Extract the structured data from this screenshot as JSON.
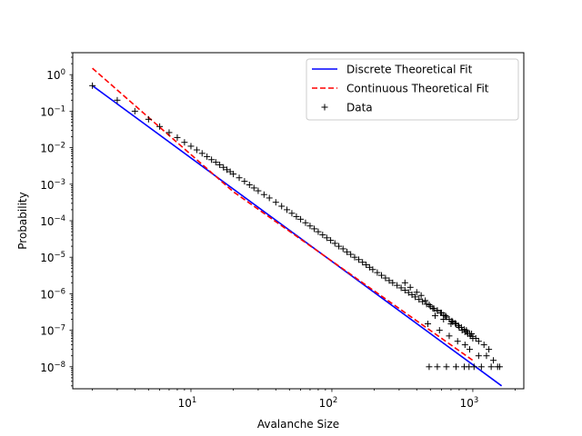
{
  "chart_data": {
    "type": "scatter",
    "xlabel": "Avalanche Size",
    "ylabel": "Probability",
    "xscale": "log",
    "yscale": "log",
    "xlim": [
      1.45,
      2300
    ],
    "ylim": [
      2.5e-09,
      4.0
    ],
    "x_ticks": [
      {
        "value": 10,
        "base": "10",
        "exp": "1"
      },
      {
        "value": 100,
        "base": "10",
        "exp": "2"
      },
      {
        "value": 1000,
        "base": "10",
        "exp": "3"
      }
    ],
    "y_ticks": [
      {
        "value": 1,
        "base": "10",
        "exp": "0"
      },
      {
        "value": 0.1,
        "base": "10",
        "exp": "−1"
      },
      {
        "value": 0.01,
        "base": "10",
        "exp": "−2"
      },
      {
        "value": 0.001,
        "base": "10",
        "exp": "−3"
      },
      {
        "value": 0.0001,
        "base": "10",
        "exp": "−4"
      },
      {
        "value": 1e-05,
        "base": "10",
        "exp": "−5"
      },
      {
        "value": 1e-06,
        "base": "10",
        "exp": "−6"
      },
      {
        "value": 1e-07,
        "base": "10",
        "exp": "−7"
      },
      {
        "value": 1e-08,
        "base": "10",
        "exp": "−8"
      }
    ],
    "grid": false,
    "legend_position": "top-right",
    "series": [
      {
        "name": "Discrete Theoretical Fit",
        "kind": "line",
        "style": "solid",
        "color": "#0000ff",
        "x": [
          2,
          1600
        ],
        "y": [
          0.5,
          3e-09
        ]
      },
      {
        "name": "Continuous Theoretical Fit",
        "kind": "line",
        "style": "dashed",
        "color": "#ff0000",
        "x": [
          2,
          20,
          1000
        ],
        "y": [
          1.5,
          0.00062,
          1.5e-08
        ]
      },
      {
        "name": "Data",
        "kind": "scatter",
        "marker": "+",
        "color": "#000000",
        "x": [
          2,
          3,
          4,
          5,
          6,
          7,
          8,
          9,
          10,
          11,
          12,
          13,
          14,
          15,
          16,
          17,
          18,
          19,
          20,
          22,
          24,
          26,
          28,
          30,
          33,
          36,
          40,
          44,
          48,
          52,
          56,
          60,
          65,
          70,
          75,
          80,
          86,
          92,
          98,
          105,
          112,
          120,
          128,
          136,
          145,
          155,
          165,
          175,
          185,
          195,
          210,
          225,
          240,
          255,
          270,
          290,
          310,
          330,
          350,
          370,
          390,
          415,
          440,
          470,
          500,
          530,
          560,
          590,
          620,
          650,
          680,
          710,
          750,
          790,
          830,
          870,
          910,
          950,
          1000,
          1050,
          1100,
          1200,
          1300,
          330,
          360,
          400,
          430,
          460,
          490,
          520,
          560,
          600,
          640,
          680,
          720,
          760,
          800,
          840,
          880,
          920,
          960,
          1000,
          540,
          620,
          700,
          800,
          900,
          980,
          480,
          580,
          680,
          780,
          880,
          950,
          1100,
          1250,
          1400,
          1550,
          490,
          560,
          650,
          760,
          870,
          940,
          1020,
          1150,
          1350,
          1500
        ],
        "y": [
          0.5,
          0.2,
          0.1,
          0.06,
          0.038,
          0.026,
          0.019,
          0.014,
          0.011,
          0.0087,
          0.007,
          0.0057,
          0.0047,
          0.004,
          0.0034,
          0.0029,
          0.0025,
          0.0022,
          0.0019,
          0.0015,
          0.0012,
          0.00096,
          0.00079,
          0.00066,
          0.00052,
          0.00042,
          0.00032,
          0.00025,
          0.0002,
          0.00016,
          0.00013,
          0.00011,
          8.8e-05,
          7.2e-05,
          6e-05,
          5e-05,
          4.1e-05,
          3.4e-05,
          2.9e-05,
          2.4e-05,
          2e-05,
          1.7e-05,
          1.4e-05,
          1.2e-05,
          1e-05,
          8.6e-06,
          7.3e-06,
          6.2e-06,
          5.3e-06,
          4.6e-06,
          3.8e-06,
          3.2e-06,
          2.7e-06,
          2.3e-06,
          2e-06,
          1.7e-06,
          1.45e-06,
          1.25e-06,
          1.08e-06,
          9.4e-07,
          8.2e-07,
          7e-07,
          6.1e-07,
          5.2e-07,
          4.5e-07,
          3.9e-07,
          3.4e-07,
          3e-07,
          2.6e-07,
          2.3e-07,
          2e-07,
          1.8e-07,
          1.55e-07,
          1.35e-07,
          1.2e-07,
          1.05e-07,
          9e-08,
          8e-08,
          6.8e-08,
          6e-08,
          5e-08,
          4e-08,
          3e-08,
          2e-06,
          1.5e-06,
          1.1e-06,
          9e-07,
          6.5e-07,
          5e-07,
          4e-07,
          3.5e-07,
          3e-07,
          2.5e-07,
          2e-07,
          1.7e-07,
          1.5e-07,
          1.2e-07,
          1e-07,
          9e-08,
          8e-08,
          7e-08,
          6e-08,
          2.5e-07,
          2e-07,
          1.5e-07,
          1.2e-07,
          1e-07,
          8e-08,
          1.5e-07,
          1e-07,
          7e-08,
          5e-08,
          4e-08,
          3e-08,
          2e-08,
          2e-08,
          1.5e-08,
          1e-08,
          1e-08,
          1e-08,
          1e-08,
          1e-08,
          1e-08,
          1e-08,
          1e-08,
          1e-08,
          1e-08,
          1e-08
        ]
      }
    ]
  }
}
